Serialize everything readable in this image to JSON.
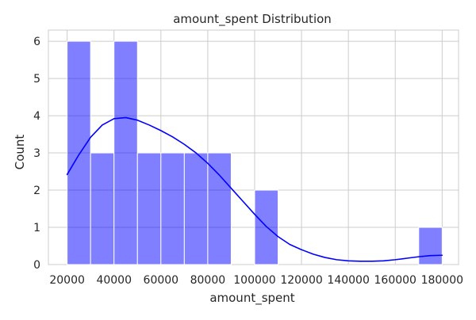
{
  "chart_data": {
    "type": "bar",
    "title": "amount_spent Distribution",
    "xlabel": "amount_spent",
    "ylabel": "Count",
    "xlim": [
      12000,
      187000
    ],
    "ylim": [
      0,
      6.3
    ],
    "x_ticks": [
      20000,
      40000,
      60000,
      80000,
      100000,
      120000,
      140000,
      160000,
      180000
    ],
    "y_ticks": [
      0,
      1,
      2,
      3,
      4,
      5,
      6
    ],
    "grid": true,
    "bar_color": "#0000ff",
    "bar_alpha": 0.5,
    "kde_color": "#0000ff",
    "bins": [
      {
        "start": 20000,
        "end": 30000,
        "count": 6
      },
      {
        "start": 30000,
        "end": 40000,
        "count": 3
      },
      {
        "start": 40000,
        "end": 50000,
        "count": 6
      },
      {
        "start": 50000,
        "end": 60000,
        "count": 3
      },
      {
        "start": 60000,
        "end": 70000,
        "count": 3
      },
      {
        "start": 70000,
        "end": 80000,
        "count": 3
      },
      {
        "start": 80000,
        "end": 90000,
        "count": 3
      },
      {
        "start": 90000,
        "end": 100000,
        "count": 0
      },
      {
        "start": 100000,
        "end": 110000,
        "count": 2
      },
      {
        "start": 110000,
        "end": 120000,
        "count": 0
      },
      {
        "start": 120000,
        "end": 130000,
        "count": 0
      },
      {
        "start": 130000,
        "end": 140000,
        "count": 0
      },
      {
        "start": 140000,
        "end": 150000,
        "count": 0
      },
      {
        "start": 150000,
        "end": 160000,
        "count": 0
      },
      {
        "start": 160000,
        "end": 170000,
        "count": 0
      },
      {
        "start": 170000,
        "end": 180000,
        "count": 1
      }
    ],
    "kde": {
      "x": [
        20000,
        25000,
        30000,
        35000,
        40000,
        45000,
        50000,
        55000,
        60000,
        65000,
        70000,
        75000,
        80000,
        85000,
        90000,
        95000,
        100000,
        105000,
        110000,
        115000,
        120000,
        125000,
        130000,
        135000,
        140000,
        145000,
        150000,
        155000,
        160000,
        165000,
        170000,
        175000,
        180000
      ],
      "y": [
        2.42,
        2.95,
        3.42,
        3.75,
        3.92,
        3.95,
        3.88,
        3.75,
        3.6,
        3.43,
        3.23,
        3.0,
        2.72,
        2.4,
        2.05,
        1.7,
        1.35,
        1.02,
        0.75,
        0.54,
        0.4,
        0.28,
        0.19,
        0.13,
        0.1,
        0.09,
        0.09,
        0.1,
        0.13,
        0.17,
        0.21,
        0.24,
        0.25
      ]
    }
  }
}
